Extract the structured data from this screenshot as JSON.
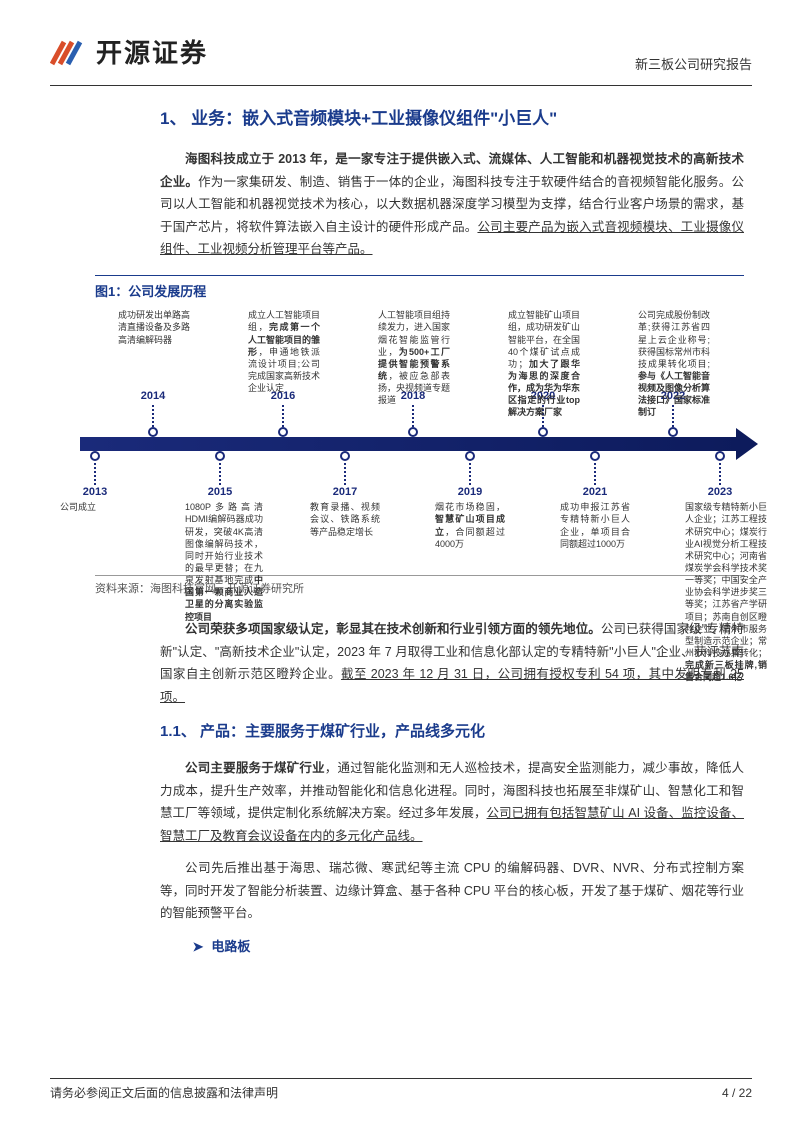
{
  "logo_text": "开源证券",
  "header_right": "新三板公司研究报告",
  "h1": "1、 业务：嵌入式音频模块+工业摄像仪组件\"小巨人\"",
  "para1_bold": "海图科技成立于 2013 年，是一家专注于提供嵌入式、流媒体、人工智能和机器视觉技术的高新技术企业。",
  "para1_rest": "作为一家集研发、制造、销售于一体的企业，海图科技专注于软硬件结合的音视频智能化服务。公司以人工智能和机器视觉技术为核心，以大数据机器深度学习模型为支撑，结合行业客户场景的需求，基于国产芯片，将软件算法嵌入自主设计的硬件形成产品。",
  "para1_under": "公司主要产品为嵌入式音视频模块、工业摄像仪组件、工业视频分析管理平台等产品。",
  "fig1_title": "图1：公司发展历程",
  "fig1_source": "资料来源：海图科技官网、开源证券研究所",
  "timeline": {
    "axis_color": "#1a2a7a",
    "years_top": [
      2014,
      2016,
      2018,
      2020,
      2022
    ],
    "years_bot": [
      2013,
      2015,
      2017,
      2019,
      2021,
      2023
    ],
    "x_top": [
      88,
      218,
      348,
      478,
      608
    ],
    "x_bot": [
      30,
      155,
      280,
      405,
      530,
      655
    ],
    "text_top": [
      "成功研发出单路高清直播设备及多路高清编解码器",
      "成立人工智能项目组，<b>完成第一个人工智能项目的雏形</b>，申通地铁派流设计项目;公司完成国家高新技术企业认定",
      "人工智能项目组持续发力，进入国家烟花智能监管行业，<b>为500+工厂提供智能预警系统</b>，被应急部表扬，央视频道专题报道",
      "成立智能矿山项目组，成功研发矿山智能平台，在全国40个煤矿试点成功；<b>加大了跟华为海思的深度合作，成为华为华东区指定的行业top解决方案厂家</b>",
      "公司完成股份制改革;获得江苏省四星上云企业称号;获得国标常州市科技成果转化项目;<b>参与《人工智能音视频及图像分析算法接口》国家标准制订</b>"
    ],
    "text_bot": [
      "公司成立",
      "1080P多路高清HDMI编解码器成功研发，突破4K高清图像编解码技术，同时开始行业技术的最早更替；在九泉发射基地完成<b>中国第一颗商业人造卫星的分离实验监控项目</b>",
      "教育录播、视频会议、铁路系统等产品稳定增长",
      "烟花市场稳固，<b>智慧矿山项目成立</b>，合同额超过4000万",
      "成功申报江苏省专精特新小巨人企业，单项目合同额超过1000万",
      "国家级专精特新小巨人企业；江苏工程技术研究中心；煤炭行业AI视觉分析工程技术研究中心；河南省煤炭学会科学技术奖一等奖；中国安全产业协会科学进步奖三等奖；江苏省产学研项目；苏南自创区瞪羚企业；常州市服务型制造示范企业；常州市科技成果转化；<b>完成新三板挂牌,销售合同超1.6亿</b>"
    ]
  },
  "para2_bold": "公司荣获多项国家级认定，彰显其在技术创新和行业引领方面的领先地位。",
  "para2_rest": "公司已获得国家级\"专精特新\"认定、\"高新技术企业\"认定，2023 年 7 月取得工业和信息化部认定的专精特新\"小巨人\"企业、获评苏南国家自主创新示范区瞪羚企业。",
  "para2_under": "截至 2023 年 12 月 31 日，公司拥有授权专利 54 项，其中发明专利 25 项。",
  "h2": "1.1、 产品：主要服务于煤矿行业，产品线多元化",
  "para3": "公司主要服务于煤矿行业，通过智能化监测和无人巡检技术，提高安全监测能力，减少事故，降低人力成本，提升生产效率，并推动智能化和信息化进程。同时，海图科技也拓展至非煤矿山、智慧化工和智慧工厂等领域，提供定制化系统解决方案。经过多年发展，",
  "para3_bold": "公司主要服务于煤矿行业",
  "para3_rest": "，通过智能化监测和无人巡检技术，提高安全监测能力，减少事故，降低人力成本，提升生产效率，并推动智能化和信息化进程。同时，海图科技也拓展至非煤矿山、智慧化工和智慧工厂等领域，提供定制化系统解决方案。经过多年发展，",
  "para3_under": "公司已拥有包括智慧矿山 AI 设备、监控设备、智慧工厂及教育会议设备在内的多元化产品线。",
  "para4": "公司先后推出基于海思、瑞芯微、寒武纪等主流 CPU 的编解码器、DVR、NVR、分布式控制方案等，同时开发了智能分析装置、边缘计算盒、基于各种 CPU 平台的核心板，开发了基于煤矿、烟花等行业的智能预警平台。",
  "bullet1": "电路板",
  "footer_left": "请务必参阅正文后面的信息披露和法律声明",
  "footer_right": "4 / 22",
  "colors": {
    "brand": "#1a3b8c",
    "axis": "#1a2a7a",
    "text": "#333"
  }
}
